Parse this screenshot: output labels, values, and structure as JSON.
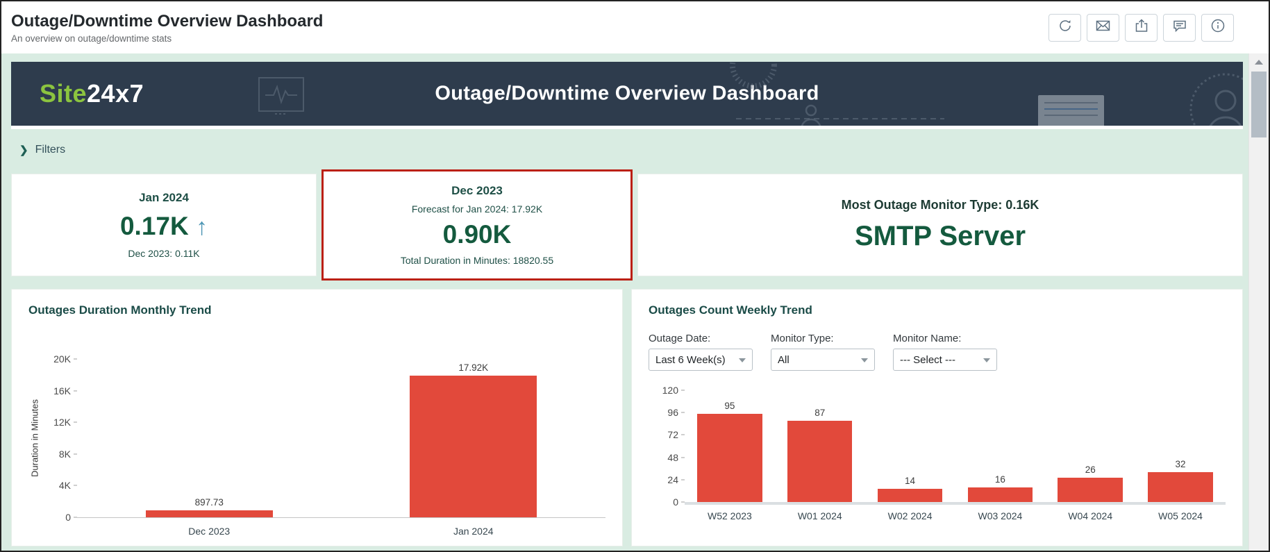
{
  "colors": {
    "accent_red": "#e2493b",
    "highlight_border_red": "#bb2015",
    "brand_green": "#8cc43f",
    "banner_navy": "#2e3c4d",
    "value_green": "#145a3e",
    "background_mint": "#d9ece2",
    "trend_arrow_blue": "#4e96b5"
  },
  "header": {
    "title": "Outage/Downtime Overview Dashboard",
    "subtitle": "An overview on outage/downtime stats",
    "action_icons": [
      "refresh-icon",
      "email-icon",
      "export-icon",
      "comment-icon",
      "info-icon"
    ]
  },
  "banner": {
    "logo_part1": "Site",
    "logo_part2": "24x7",
    "title": "Outage/Downtime Overview Dashboard"
  },
  "filters": {
    "label": "Filters"
  },
  "kpi_cards": [
    {
      "title": "Jan 2024",
      "value": "0.17K",
      "trend": "↑",
      "footer": "Dec 2023: 0.11K"
    },
    {
      "title": "Dec 2023",
      "subtitle": "Forecast for Jan 2024: 17.92K",
      "value": "0.90K",
      "footer": "Total Duration in Minutes: 18820.55",
      "highlighted": true
    },
    {
      "title": "Most Outage Monitor Type: 0.16K",
      "value": "SMTP Server"
    }
  ],
  "chart_data": [
    {
      "type": "bar",
      "title": "Outages Duration Monthly Trend",
      "categories": [
        "Dec 2023",
        "Jan 2024"
      ],
      "values": [
        897.73,
        17920
      ],
      "value_labels": [
        "897.73",
        "17.92K"
      ],
      "xlabel": "",
      "ylabel": "Duration in Minutes",
      "ylim": [
        0,
        20000
      ],
      "yticks": [
        "20K",
        "16K",
        "12K",
        "8K",
        "4K",
        "0"
      ],
      "grid": false,
      "legend": "none",
      "bar_color": "#e2493b"
    },
    {
      "type": "bar",
      "title": "Outages Count Weekly Trend",
      "categories": [
        "W52 2023",
        "W01 2024",
        "W02 2024",
        "W03 2024",
        "W04 2024",
        "W05 2024"
      ],
      "values": [
        95,
        87,
        14,
        16,
        26,
        32
      ],
      "value_labels": [
        "95",
        "87",
        "14",
        "16",
        "26",
        "32"
      ],
      "xlabel": "",
      "ylabel": "",
      "ylim": [
        0,
        120
      ],
      "yticks": [
        "120",
        "96",
        "72",
        "48",
        "24",
        "0"
      ],
      "grid": false,
      "legend": "none",
      "bar_color": "#e2493b",
      "filters": [
        {
          "label": "Outage Date:",
          "value": "Last 6 Week(s)"
        },
        {
          "label": "Monitor Type:",
          "value": "All"
        },
        {
          "label": "Monitor Name:",
          "value": "--- Select ---"
        }
      ]
    }
  ]
}
